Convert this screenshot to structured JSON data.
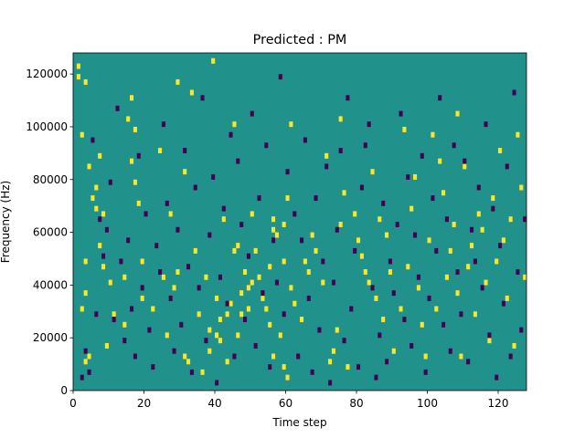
{
  "chart_data": {
    "type": "heatmap",
    "title": "Predicted : PM",
    "xlabel": "Time step",
    "ylabel": "Frequency (Hz)",
    "xlim": [
      0,
      128
    ],
    "ylim": [
      0,
      128000
    ],
    "x_ticks": [
      0,
      20,
      40,
      60,
      80,
      100,
      120
    ],
    "y_ticks": [
      0,
      20000,
      40000,
      60000,
      80000,
      100000,
      120000
    ],
    "x_tick_labels": [
      "0",
      "20",
      "40",
      "60",
      "80",
      "100",
      "120"
    ],
    "y_tick_labels": [
      "0",
      "20000",
      "40000",
      "60000",
      "80000",
      "100000",
      "120000"
    ],
    "colormap": "viridis",
    "grid": false,
    "colors": {
      "background": "#21918c",
      "high": "#fde725",
      "low": "#440154"
    },
    "frequency_bin_hz": 2000,
    "cells_high": [
      [
        1,
        118000
      ],
      [
        1,
        122000
      ],
      [
        2,
        30000
      ],
      [
        2,
        96000
      ],
      [
        3,
        10000
      ],
      [
        3,
        36000
      ],
      [
        3,
        48000
      ],
      [
        3,
        116000
      ],
      [
        4,
        12000
      ],
      [
        4,
        84000
      ],
      [
        5,
        72000
      ],
      [
        6,
        68000
      ],
      [
        6,
        76000
      ],
      [
        7,
        54000
      ],
      [
        7,
        88000
      ],
      [
        8,
        46000
      ],
      [
        8,
        66000
      ],
      [
        9,
        16000
      ],
      [
        10,
        40000
      ],
      [
        11,
        28000
      ],
      [
        14,
        24000
      ],
      [
        14,
        42000
      ],
      [
        15,
        102000
      ],
      [
        16,
        86000
      ],
      [
        16,
        110000
      ],
      [
        17,
        78000
      ],
      [
        17,
        98000
      ],
      [
        18,
        70000
      ],
      [
        19,
        34000
      ],
      [
        19,
        48000
      ],
      [
        22,
        30000
      ],
      [
        24,
        90000
      ],
      [
        25,
        42000
      ],
      [
        26,
        20000
      ],
      [
        27,
        66000
      ],
      [
        28,
        38000
      ],
      [
        29,
        44000
      ],
      [
        29,
        116000
      ],
      [
        31,
        82000
      ],
      [
        31,
        12000
      ],
      [
        32,
        10000
      ],
      [
        33,
        112000
      ],
      [
        34,
        52000
      ],
      [
        35,
        28000
      ],
      [
        36,
        6000
      ],
      [
        37,
        42000
      ],
      [
        38,
        14000
      ],
      [
        38,
        22000
      ],
      [
        39,
        124000
      ],
      [
        40,
        20000
      ],
      [
        40,
        34000
      ],
      [
        41,
        18000
      ],
      [
        41,
        26000
      ],
      [
        42,
        64000
      ],
      [
        43,
        10000
      ],
      [
        43,
        28000
      ],
      [
        44,
        32000
      ],
      [
        45,
        52000
      ],
      [
        45,
        100000
      ],
      [
        46,
        54000
      ],
      [
        46,
        20000
      ],
      [
        47,
        36000
      ],
      [
        47,
        28000
      ],
      [
        48,
        44000
      ],
      [
        49,
        38000
      ],
      [
        49,
        30000
      ],
      [
        50,
        40000
      ],
      [
        50,
        66000
      ],
      [
        51,
        52000
      ],
      [
        52,
        42000
      ],
      [
        53,
        34000
      ],
      [
        54,
        30000
      ],
      [
        55,
        46000
      ],
      [
        55,
        24000
      ],
      [
        56,
        60000
      ],
      [
        56,
        64000
      ],
      [
        56,
        12000
      ],
      [
        57,
        58000
      ],
      [
        58,
        20000
      ],
      [
        59,
        48000
      ],
      [
        59,
        8000
      ],
      [
        59,
        62000
      ],
      [
        60,
        4000
      ],
      [
        60,
        72000
      ],
      [
        61,
        38000
      ],
      [
        61,
        100000
      ],
      [
        62,
        32000
      ],
      [
        64,
        26000
      ],
      [
        65,
        48000
      ],
      [
        66,
        44000
      ],
      [
        67,
        58000
      ],
      [
        68,
        52000
      ],
      [
        70,
        40000
      ],
      [
        71,
        88000
      ],
      [
        72,
        10000
      ],
      [
        73,
        14000
      ],
      [
        74,
        22000
      ],
      [
        75,
        62000
      ],
      [
        75,
        102000
      ],
      [
        76,
        74000
      ],
      [
        77,
        8000
      ],
      [
        79,
        66000
      ],
      [
        80,
        56000
      ],
      [
        81,
        50000
      ],
      [
        82,
        44000
      ],
      [
        83,
        40000
      ],
      [
        84,
        82000
      ],
      [
        85,
        34000
      ],
      [
        86,
        64000
      ],
      [
        87,
        26000
      ],
      [
        88,
        58000
      ],
      [
        89,
        44000
      ],
      [
        90,
        14000
      ],
      [
        92,
        30000
      ],
      [
        93,
        98000
      ],
      [
        94,
        46000
      ],
      [
        95,
        68000
      ],
      [
        96,
        80000
      ],
      [
        97,
        38000
      ],
      [
        98,
        24000
      ],
      [
        99,
        12000
      ],
      [
        100,
        56000
      ],
      [
        101,
        96000
      ],
      [
        102,
        30000
      ],
      [
        103,
        86000
      ],
      [
        104,
        74000
      ],
      [
        105,
        42000
      ],
      [
        106,
        52000
      ],
      [
        107,
        62000
      ],
      [
        108,
        36000
      ],
      [
        108,
        104000
      ],
      [
        109,
        12000
      ],
      [
        110,
        84000
      ],
      [
        111,
        46000
      ],
      [
        112,
        54000
      ],
      [
        113,
        28000
      ],
      [
        114,
        66000
      ],
      [
        115,
        60000
      ],
      [
        116,
        40000
      ],
      [
        117,
        18000
      ],
      [
        118,
        72000
      ],
      [
        119,
        48000
      ],
      [
        120,
        90000
      ],
      [
        121,
        56000
      ],
      [
        122,
        34000
      ],
      [
        123,
        64000
      ],
      [
        124,
        16000
      ],
      [
        125,
        96000
      ],
      [
        126,
        76000
      ],
      [
        127,
        42000
      ]
    ],
    "cells_low": [
      [
        2,
        4000
      ],
      [
        3,
        14000
      ],
      [
        4,
        6000
      ],
      [
        5,
        94000
      ],
      [
        6,
        28000
      ],
      [
        7,
        64000
      ],
      [
        8,
        50000
      ],
      [
        9,
        60000
      ],
      [
        10,
        78000
      ],
      [
        11,
        26000
      ],
      [
        12,
        106000
      ],
      [
        13,
        48000
      ],
      [
        14,
        18000
      ],
      [
        15,
        56000
      ],
      [
        16,
        30000
      ],
      [
        17,
        12000
      ],
      [
        18,
        88000
      ],
      [
        19,
        38000
      ],
      [
        20,
        66000
      ],
      [
        21,
        22000
      ],
      [
        22,
        8000
      ],
      [
        23,
        54000
      ],
      [
        24,
        44000
      ],
      [
        25,
        100000
      ],
      [
        26,
        70000
      ],
      [
        27,
        34000
      ],
      [
        28,
        14000
      ],
      [
        29,
        60000
      ],
      [
        30,
        24000
      ],
      [
        31,
        90000
      ],
      [
        32,
        46000
      ],
      [
        33,
        6000
      ],
      [
        34,
        76000
      ],
      [
        35,
        38000
      ],
      [
        36,
        110000
      ],
      [
        37,
        18000
      ],
      [
        38,
        58000
      ],
      [
        39,
        80000
      ],
      [
        40,
        2000
      ],
      [
        41,
        42000
      ],
      [
        42,
        68000
      ],
      [
        43,
        32000
      ],
      [
        44,
        96000
      ],
      [
        45,
        12000
      ],
      [
        46,
        86000
      ],
      [
        47,
        62000
      ],
      [
        48,
        26000
      ],
      [
        49,
        50000
      ],
      [
        50,
        104000
      ],
      [
        51,
        16000
      ],
      [
        52,
        72000
      ],
      [
        53,
        36000
      ],
      [
        54,
        92000
      ],
      [
        55,
        8000
      ],
      [
        56,
        56000
      ],
      [
        57,
        40000
      ],
      [
        58,
        118000
      ],
      [
        59,
        28000
      ],
      [
        60,
        82000
      ],
      [
        62,
        66000
      ],
      [
        63,
        12000
      ],
      [
        64,
        56000
      ],
      [
        65,
        94000
      ],
      [
        66,
        34000
      ],
      [
        67,
        6000
      ],
      [
        68,
        72000
      ],
      [
        69,
        22000
      ],
      [
        70,
        48000
      ],
      [
        71,
        84000
      ],
      [
        72,
        2000
      ],
      [
        73,
        40000
      ],
      [
        74,
        60000
      ],
      [
        75,
        90000
      ],
      [
        76,
        18000
      ],
      [
        77,
        110000
      ],
      [
        78,
        30000
      ],
      [
        79,
        52000
      ],
      [
        80,
        8000
      ],
      [
        81,
        76000
      ],
      [
        82,
        92000
      ],
      [
        83,
        100000
      ],
      [
        84,
        38000
      ],
      [
        85,
        4000
      ],
      [
        86,
        20000
      ],
      [
        87,
        70000
      ],
      [
        88,
        10000
      ],
      [
        89,
        48000
      ],
      [
        90,
        36000
      ],
      [
        91,
        62000
      ],
      [
        92,
        104000
      ],
      [
        93,
        26000
      ],
      [
        94,
        80000
      ],
      [
        95,
        16000
      ],
      [
        96,
        58000
      ],
      [
        97,
        42000
      ],
      [
        98,
        88000
      ],
      [
        99,
        6000
      ],
      [
        100,
        34000
      ],
      [
        101,
        72000
      ],
      [
        102,
        52000
      ],
      [
        103,
        110000
      ],
      [
        104,
        24000
      ],
      [
        105,
        64000
      ],
      [
        106,
        14000
      ],
      [
        107,
        92000
      ],
      [
        108,
        44000
      ],
      [
        109,
        28000
      ],
      [
        110,
        86000
      ],
      [
        111,
        10000
      ],
      [
        112,
        60000
      ],
      [
        113,
        48000
      ],
      [
        114,
        76000
      ],
      [
        115,
        38000
      ],
      [
        116,
        100000
      ],
      [
        117,
        20000
      ],
      [
        118,
        68000
      ],
      [
        119,
        4000
      ],
      [
        120,
        54000
      ],
      [
        121,
        32000
      ],
      [
        122,
        84000
      ],
      [
        123,
        12000
      ],
      [
        124,
        112000
      ],
      [
        125,
        44000
      ],
      [
        126,
        22000
      ],
      [
        127,
        64000
      ]
    ]
  }
}
